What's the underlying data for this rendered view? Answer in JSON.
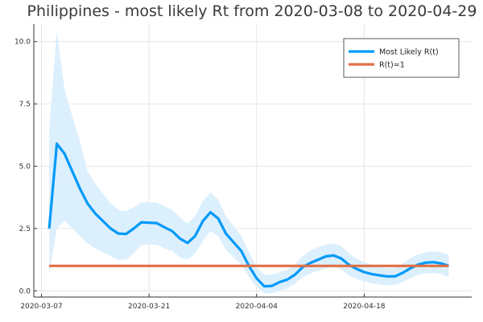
{
  "chart_data": {
    "type": "line",
    "title": "Philippines - most likely Rt from 2020-03-08 to 2020-04-29",
    "xlabel": "",
    "ylabel": "",
    "x_axis": {
      "type": "date",
      "range": [
        "2020-03-06",
        "2020-05-02"
      ],
      "tick_labels": [
        "2020-03-07",
        "2020-03-21",
        "2020-04-04",
        "2020-04-18"
      ]
    },
    "y_axis": {
      "range": [
        -0.25,
        10.7
      ],
      "tick_values": [
        0,
        2.5,
        5,
        7.5,
        10
      ],
      "tick_labels": [
        "0.0",
        "2.5",
        "5.0",
        "7.5",
        "10.0"
      ]
    },
    "grid": true,
    "legend": {
      "position": "top-right",
      "entries": [
        "Most Likely R(t)",
        "R(t)=1"
      ]
    },
    "colors": {
      "most_likely": "#009AF9",
      "band": "#DCEFFD",
      "threshold": "#E26F46"
    },
    "series": [
      {
        "name": "Most Likely R(t)",
        "x": [
          "2020-03-08",
          "2020-03-09",
          "2020-03-10",
          "2020-03-11",
          "2020-03-12",
          "2020-03-13",
          "2020-03-14",
          "2020-03-15",
          "2020-03-16",
          "2020-03-17",
          "2020-03-18",
          "2020-03-19",
          "2020-03-20",
          "2020-03-21",
          "2020-03-22",
          "2020-03-23",
          "2020-03-24",
          "2020-03-25",
          "2020-03-26",
          "2020-03-27",
          "2020-03-28",
          "2020-03-29",
          "2020-03-30",
          "2020-03-31",
          "2020-04-01",
          "2020-04-02",
          "2020-04-03",
          "2020-04-04",
          "2020-04-05",
          "2020-04-06",
          "2020-04-07",
          "2020-04-08",
          "2020-04-09",
          "2020-04-10",
          "2020-04-11",
          "2020-04-12",
          "2020-04-13",
          "2020-04-14",
          "2020-04-15",
          "2020-04-16",
          "2020-04-17",
          "2020-04-18",
          "2020-04-19",
          "2020-04-20",
          "2020-04-21",
          "2020-04-22",
          "2020-04-23",
          "2020-04-24",
          "2020-04-25",
          "2020-04-26",
          "2020-04-27",
          "2020-04-28",
          "2020-04-29"
        ],
        "y": [
          2.5,
          5.9,
          5.5,
          4.8,
          4.1,
          3.5,
          3.1,
          2.8,
          2.5,
          2.3,
          2.28,
          2.5,
          2.75,
          2.73,
          2.72,
          2.55,
          2.4,
          2.1,
          1.92,
          2.2,
          2.8,
          3.15,
          2.9,
          2.3,
          1.95,
          1.6,
          1.0,
          0.5,
          0.18,
          0.2,
          0.35,
          0.45,
          0.65,
          0.95,
          1.12,
          1.25,
          1.38,
          1.42,
          1.3,
          1.05,
          0.88,
          0.75,
          0.67,
          0.62,
          0.58,
          0.58,
          0.72,
          0.9,
          1.05,
          1.13,
          1.15,
          1.1,
          1.0
        ]
      },
      {
        "name": "R(t)=1",
        "x": [
          "2020-03-08",
          "2020-04-29"
        ],
        "y": [
          1,
          1
        ]
      }
    ],
    "band": {
      "x": [
        "2020-03-08",
        "2020-03-09",
        "2020-03-10",
        "2020-03-11",
        "2020-03-12",
        "2020-03-13",
        "2020-03-14",
        "2020-03-15",
        "2020-03-16",
        "2020-03-17",
        "2020-03-18",
        "2020-03-19",
        "2020-03-20",
        "2020-03-21",
        "2020-03-22",
        "2020-03-23",
        "2020-03-24",
        "2020-03-25",
        "2020-03-26",
        "2020-03-27",
        "2020-03-28",
        "2020-03-29",
        "2020-03-30",
        "2020-03-31",
        "2020-04-01",
        "2020-04-02",
        "2020-04-03",
        "2020-04-04",
        "2020-04-05",
        "2020-04-06",
        "2020-04-07",
        "2020-04-08",
        "2020-04-09",
        "2020-04-10",
        "2020-04-11",
        "2020-04-12",
        "2020-04-13",
        "2020-04-14",
        "2020-04-15",
        "2020-04-16",
        "2020-04-17",
        "2020-04-18",
        "2020-04-19",
        "2020-04-20",
        "2020-04-21",
        "2020-04-22",
        "2020-04-23",
        "2020-04-24",
        "2020-04-25",
        "2020-04-26",
        "2020-04-27",
        "2020-04-28",
        "2020-04-29"
      ],
      "lower": [
        0.7,
        2.5,
        2.8,
        2.5,
        2.2,
        1.9,
        1.7,
        1.55,
        1.4,
        1.25,
        1.25,
        1.5,
        1.85,
        1.85,
        1.85,
        1.7,
        1.6,
        1.35,
        1.25,
        1.5,
        2.0,
        2.4,
        2.2,
        1.65,
        1.35,
        1.05,
        0.55,
        0.15,
        -0.1,
        -0.1,
        0.0,
        0.1,
        0.3,
        0.55,
        0.7,
        0.8,
        0.9,
        0.95,
        0.85,
        0.62,
        0.48,
        0.38,
        0.3,
        0.25,
        0.22,
        0.22,
        0.35,
        0.5,
        0.65,
        0.7,
        0.72,
        0.68,
        0.55
      ],
      "upper": [
        6.5,
        10.4,
        8.1,
        7.0,
        6.0,
        4.8,
        4.3,
        3.9,
        3.5,
        3.25,
        3.2,
        3.35,
        3.55,
        3.55,
        3.55,
        3.4,
        3.25,
        2.95,
        2.7,
        3.0,
        3.6,
        3.95,
        3.65,
        3.0,
        2.6,
        2.2,
        1.55,
        0.95,
        0.65,
        0.65,
        0.75,
        0.85,
        1.05,
        1.4,
        1.6,
        1.75,
        1.85,
        1.9,
        1.8,
        1.5,
        1.3,
        1.15,
        1.05,
        0.95,
        0.92,
        0.92,
        1.1,
        1.3,
        1.45,
        1.55,
        1.58,
        1.55,
        1.45
      ]
    }
  }
}
